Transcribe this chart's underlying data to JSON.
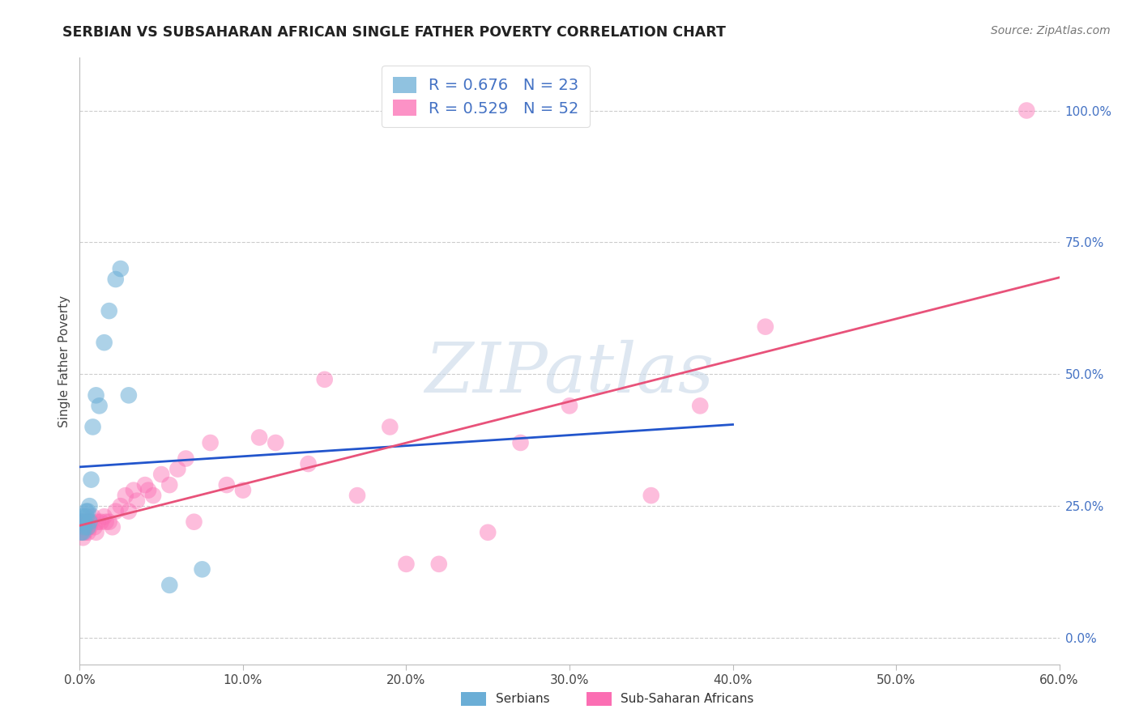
{
  "title": "SERBIAN VS SUBSAHARAN AFRICAN SINGLE FATHER POVERTY CORRELATION CHART",
  "source": "Source: ZipAtlas.com",
  "ylabel": "Single Father Poverty",
  "xlim": [
    0.0,
    0.6
  ],
  "ylim": [
    -0.05,
    1.1
  ],
  "yticks": [
    0.0,
    0.25,
    0.5,
    0.75,
    1.0
  ],
  "ytick_labels": [
    "0.0%",
    "25.0%",
    "50.0%",
    "75.0%",
    "100.0%"
  ],
  "xticks": [
    0.0,
    0.1,
    0.2,
    0.3,
    0.4,
    0.5,
    0.6
  ],
  "xtick_labels": [
    "0.0%",
    "10.0%",
    "20.0%",
    "30.0%",
    "40.0%",
    "50.0%",
    "60.0%"
  ],
  "grid_color": "#cccccc",
  "background_color": "#ffffff",
  "watermark": "ZIPatlas",
  "watermark_color": "#c8d8e8",
  "serbian_color": "#6baed6",
  "subsaharan_color": "#fb6eb3",
  "serbian_line_color": "#2255cc",
  "subsaharan_line_color": "#e8527a",
  "serbian_R": 0.676,
  "serbian_N": 23,
  "subsaharan_R": 0.529,
  "subsaharan_N": 52,
  "serbian_x": [
    0.001,
    0.001,
    0.002,
    0.002,
    0.003,
    0.003,
    0.004,
    0.004,
    0.005,
    0.005,
    0.006,
    0.006,
    0.007,
    0.008,
    0.01,
    0.012,
    0.015,
    0.018,
    0.022,
    0.025,
    0.03,
    0.055,
    0.075
  ],
  "serbian_y": [
    0.2,
    0.22,
    0.2,
    0.23,
    0.21,
    0.22,
    0.23,
    0.24,
    0.21,
    0.24,
    0.22,
    0.25,
    0.3,
    0.4,
    0.46,
    0.44,
    0.56,
    0.62,
    0.68,
    0.7,
    0.46,
    0.1,
    0.13
  ],
  "subsaharan_x": [
    0.001,
    0.001,
    0.002,
    0.002,
    0.003,
    0.003,
    0.004,
    0.005,
    0.005,
    0.006,
    0.007,
    0.008,
    0.009,
    0.01,
    0.011,
    0.013,
    0.015,
    0.016,
    0.018,
    0.02,
    0.022,
    0.025,
    0.028,
    0.03,
    0.033,
    0.035,
    0.04,
    0.042,
    0.045,
    0.05,
    0.055,
    0.06,
    0.065,
    0.07,
    0.08,
    0.09,
    0.1,
    0.11,
    0.12,
    0.14,
    0.15,
    0.17,
    0.19,
    0.2,
    0.22,
    0.25,
    0.27,
    0.3,
    0.35,
    0.38,
    0.42,
    0.58
  ],
  "subsaharan_y": [
    0.2,
    0.22,
    0.19,
    0.22,
    0.2,
    0.22,
    0.21,
    0.2,
    0.22,
    0.21,
    0.22,
    0.23,
    0.21,
    0.2,
    0.22,
    0.22,
    0.23,
    0.22,
    0.22,
    0.21,
    0.24,
    0.25,
    0.27,
    0.24,
    0.28,
    0.26,
    0.29,
    0.28,
    0.27,
    0.31,
    0.29,
    0.32,
    0.34,
    0.22,
    0.37,
    0.29,
    0.28,
    0.38,
    0.37,
    0.33,
    0.49,
    0.27,
    0.4,
    0.14,
    0.14,
    0.2,
    0.37,
    0.44,
    0.27,
    0.44,
    0.59,
    1.0
  ]
}
